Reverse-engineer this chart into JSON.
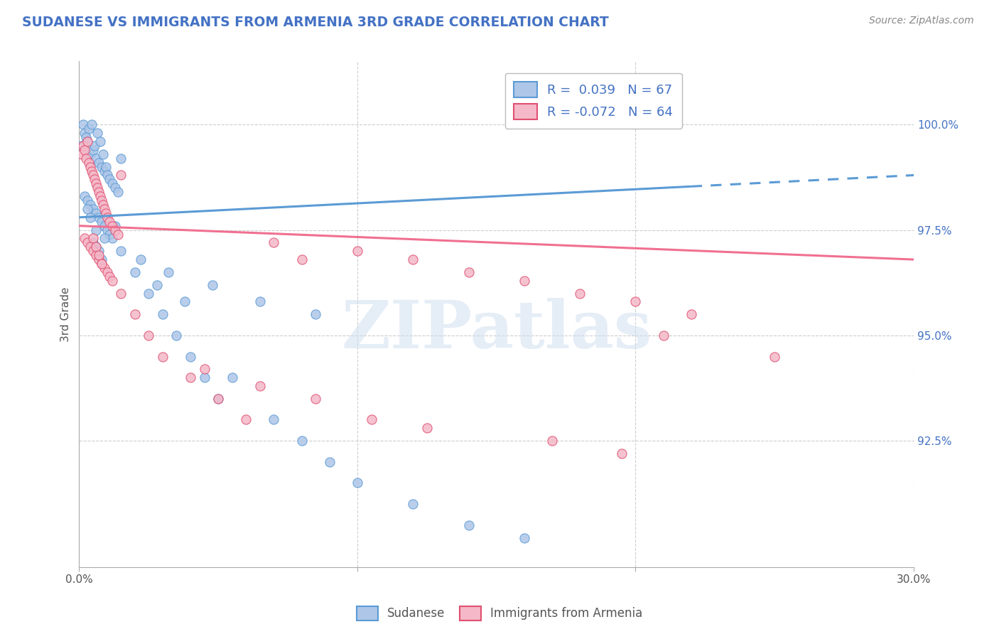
{
  "title": "SUDANESE VS IMMIGRANTS FROM ARMENIA 3RD GRADE CORRELATION CHART",
  "source": "Source: ZipAtlas.com",
  "ylabel": "3rd Grade",
  "xlim": [
    0.0,
    30.0
  ],
  "ylim": [
    89.5,
    101.5
  ],
  "xticks": [
    0.0,
    10.0,
    20.0,
    30.0
  ],
  "xtick_labels": [
    "0.0%",
    "",
    "",
    "30.0%"
  ],
  "ytick_labels": [
    "92.5%",
    "95.0%",
    "97.5%",
    "100.0%"
  ],
  "yticks": [
    92.5,
    95.0,
    97.5,
    100.0
  ],
  "blue_color": "#aec6e8",
  "pink_color": "#f4b8c8",
  "blue_line_color": "#5b9bd5",
  "pink_line_color": "#f07090",
  "blue_edge_color": "#5b9bd5",
  "pink_edge_color": "#e05070",
  "legend_text_color": "#4472c4",
  "R_blue": 0.039,
  "N_blue": 67,
  "R_pink": -0.072,
  "N_pink": 64,
  "watermark": "ZIPatlas",
  "background_color": "#ffffff",
  "grid_color": "#c8c8c8",
  "title_color": "#4472c4",
  "blue_scatter_x": [
    0.1,
    0.15,
    0.2,
    0.25,
    0.3,
    0.35,
    0.4,
    0.45,
    0.5,
    0.55,
    0.6,
    0.65,
    0.7,
    0.75,
    0.8,
    0.85,
    0.9,
    0.95,
    1.0,
    1.1,
    1.2,
    1.3,
    1.4,
    1.5,
    0.2,
    0.3,
    0.4,
    0.5,
    0.6,
    0.7,
    0.8,
    0.9,
    1.0,
    1.1,
    1.2,
    1.3,
    2.0,
    2.5,
    3.0,
    3.5,
    4.0,
    4.5,
    5.0,
    0.5,
    0.6,
    0.7,
    0.8,
    2.8,
    3.8,
    5.5,
    7.0,
    8.0,
    9.0,
    10.0,
    12.0,
    14.0,
    16.0,
    0.3,
    0.4,
    0.6,
    0.9,
    1.5,
    2.2,
    3.2,
    4.8,
    6.5,
    8.5
  ],
  "blue_scatter_y": [
    99.5,
    100.0,
    99.8,
    99.7,
    99.6,
    99.9,
    99.3,
    100.0,
    99.4,
    99.5,
    99.2,
    99.8,
    99.1,
    99.6,
    99.0,
    99.3,
    98.9,
    99.0,
    98.8,
    98.7,
    98.6,
    98.5,
    98.4,
    99.2,
    98.3,
    98.2,
    98.1,
    98.0,
    97.9,
    97.8,
    97.7,
    97.6,
    97.5,
    97.4,
    97.3,
    97.6,
    96.5,
    96.0,
    95.5,
    95.0,
    94.5,
    94.0,
    93.5,
    97.2,
    97.1,
    97.0,
    96.8,
    96.2,
    95.8,
    94.0,
    93.0,
    92.5,
    92.0,
    91.5,
    91.0,
    90.5,
    90.2,
    98.0,
    97.8,
    97.5,
    97.3,
    97.0,
    96.8,
    96.5,
    96.2,
    95.8,
    95.5
  ],
  "pink_scatter_x": [
    0.1,
    0.15,
    0.2,
    0.25,
    0.3,
    0.35,
    0.4,
    0.45,
    0.5,
    0.55,
    0.6,
    0.65,
    0.7,
    0.75,
    0.8,
    0.85,
    0.9,
    0.95,
    1.0,
    1.1,
    1.2,
    1.3,
    1.4,
    1.5,
    0.2,
    0.3,
    0.4,
    0.5,
    0.6,
    0.7,
    0.8,
    0.9,
    1.0,
    1.1,
    1.2,
    0.5,
    0.6,
    0.7,
    0.8,
    1.5,
    2.0,
    2.5,
    3.0,
    4.0,
    5.0,
    6.0,
    7.0,
    8.0,
    10.0,
    12.0,
    14.0,
    16.0,
    18.0,
    20.0,
    22.0,
    4.5,
    6.5,
    8.5,
    10.5,
    12.5,
    17.0,
    19.5,
    21.0,
    25.0
  ],
  "pink_scatter_y": [
    99.3,
    99.5,
    99.4,
    99.2,
    99.6,
    99.1,
    99.0,
    98.9,
    98.8,
    98.7,
    98.6,
    98.5,
    98.4,
    98.3,
    98.2,
    98.1,
    98.0,
    97.9,
    97.8,
    97.7,
    97.6,
    97.5,
    97.4,
    98.8,
    97.3,
    97.2,
    97.1,
    97.0,
    96.9,
    96.8,
    96.7,
    96.6,
    96.5,
    96.4,
    96.3,
    97.3,
    97.1,
    96.9,
    96.7,
    96.0,
    95.5,
    95.0,
    94.5,
    94.0,
    93.5,
    93.0,
    97.2,
    96.8,
    97.0,
    96.8,
    96.5,
    96.3,
    96.0,
    95.8,
    95.5,
    94.2,
    93.8,
    93.5,
    93.0,
    92.8,
    92.5,
    92.2,
    95.0,
    94.5
  ],
  "blue_trend_x": [
    0.0,
    30.0
  ],
  "blue_trend_y": [
    97.8,
    98.8
  ],
  "pink_trend_x": [
    0.0,
    30.0
  ],
  "pink_trend_y": [
    97.6,
    96.8
  ]
}
